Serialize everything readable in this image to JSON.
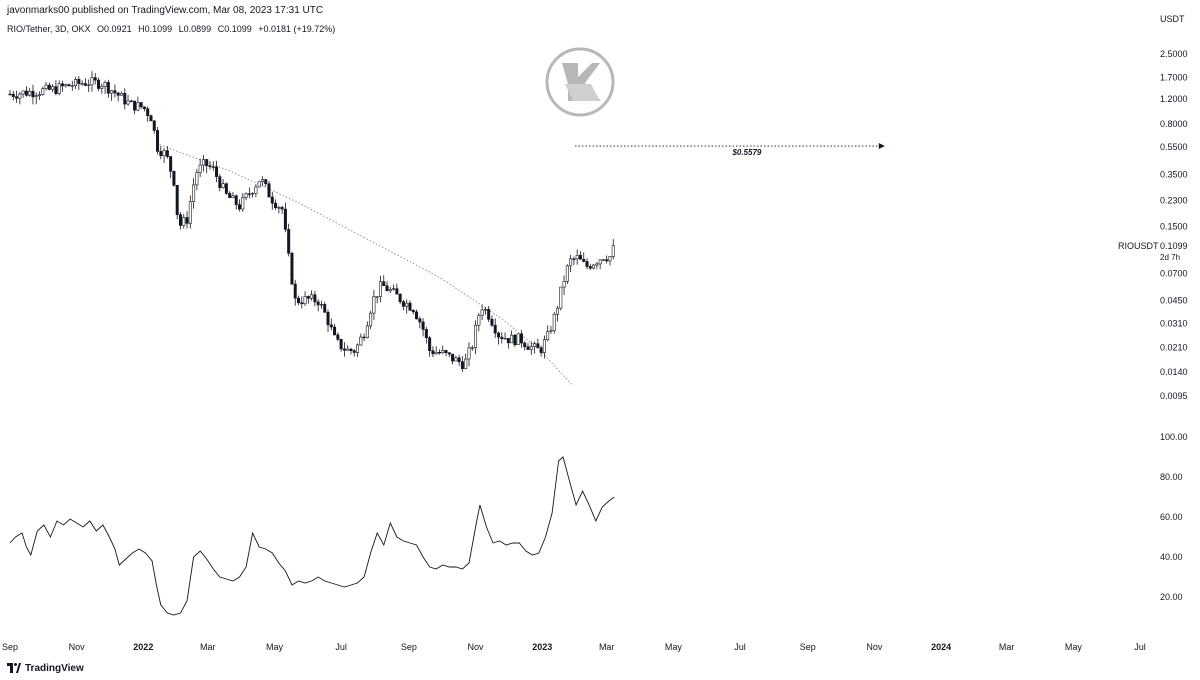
{
  "header": {
    "published": "javonmarks00 published on TradingView.com, Mar 08, 2023 17:31 UTC",
    "symbol_line": "RIO/Tether, 3D, OKX",
    "open": "O0.0921",
    "high": "H0.1099",
    "low": "L0.0899",
    "close": "C0.1099",
    "change": "+0.0181 (+19.72%)"
  },
  "footer": {
    "brand": "TradingView"
  },
  "chart_data": [
    {
      "type": "line",
      "subtype": "candlestick",
      "symbol": "RIOUSDT",
      "current_price_label": "0.1099",
      "countdown_label": "2d 7h",
      "currency_label": "USDT",
      "yscale": "log",
      "ylim": [
        0.0075,
        3.2
      ],
      "y_ticks": [
        "2.5000",
        "1.7000",
        "1.2000",
        "0.8000",
        "0.5500",
        "0.3500",
        "0.2300",
        "0.1500",
        "0.0700",
        "0.0450",
        "0.0310",
        "0.0210",
        "0.0140",
        "0.0095"
      ],
      "target_label": "$0.5579",
      "target_value": 0.5579,
      "target_line": {
        "from": "2023-01-31",
        "to": "2023-11-05"
      },
      "trendline": [
        [
          "2022-01-16",
          0.57
        ],
        [
          "2022-03-22",
          0.37
        ],
        [
          "2022-05-24",
          0.22
        ],
        [
          "2022-07-27",
          0.12
        ],
        [
          "2022-09-30",
          0.065
        ],
        [
          "2022-11-26",
          0.033
        ],
        [
          "2022-12-30",
          0.02
        ],
        [
          "2023-01-28",
          0.0115
        ]
      ],
      "price_path": [
        [
          "2021-09-01",
          1.3
        ],
        [
          "2021-09-20",
          1.35
        ],
        [
          "2021-10-10",
          1.4
        ],
        [
          "2021-10-25",
          1.5
        ],
        [
          "2021-11-10",
          1.58
        ],
        [
          "2021-11-25",
          1.55
        ],
        [
          "2021-12-08",
          1.3
        ],
        [
          "2021-12-20",
          1.1
        ],
        [
          "2022-01-01",
          1.05
        ],
        [
          "2022-01-08",
          0.9
        ],
        [
          "2022-01-14",
          0.55
        ],
        [
          "2022-01-22",
          0.48
        ],
        [
          "2022-01-30",
          0.3
        ],
        [
          "2022-02-02",
          0.15
        ],
        [
          "2022-02-10",
          0.17
        ],
        [
          "2022-02-18",
          0.36
        ],
        [
          "2022-02-26",
          0.42
        ],
        [
          "2022-03-06",
          0.38
        ],
        [
          "2022-03-18",
          0.25
        ],
        [
          "2022-03-30",
          0.21
        ],
        [
          "2022-04-08",
          0.26
        ],
        [
          "2022-04-18",
          0.33
        ],
        [
          "2022-04-28",
          0.24
        ],
        [
          "2022-05-08",
          0.2
        ],
        [
          "2022-05-14",
          0.09
        ],
        [
          "2022-05-20",
          0.045
        ],
        [
          "2022-06-01",
          0.046
        ],
        [
          "2022-06-10",
          0.045
        ],
        [
          "2022-06-18",
          0.034
        ],
        [
          "2022-06-26",
          0.023
        ],
        [
          "2022-07-06",
          0.02
        ],
        [
          "2022-07-14",
          0.02
        ],
        [
          "2022-07-22",
          0.027
        ],
        [
          "2022-07-30",
          0.045
        ],
        [
          "2022-08-07",
          0.058
        ],
        [
          "2022-08-16",
          0.052
        ],
        [
          "2022-08-26",
          0.045
        ],
        [
          "2022-09-05",
          0.04
        ],
        [
          "2022-09-13",
          0.03
        ],
        [
          "2022-09-20",
          0.02
        ],
        [
          "2022-10-02",
          0.019
        ],
        [
          "2022-10-14",
          0.017
        ],
        [
          "2022-10-22",
          0.016
        ],
        [
          "2022-10-29",
          0.022
        ],
        [
          "2022-11-06",
          0.042
        ],
        [
          "2022-11-14",
          0.035
        ],
        [
          "2022-11-22",
          0.026
        ],
        [
          "2022-12-02",
          0.024
        ],
        [
          "2022-12-12",
          0.024
        ],
        [
          "2022-12-22",
          0.021
        ],
        [
          "2022-12-30",
          0.02
        ],
        [
          "2023-01-06",
          0.025
        ],
        [
          "2023-01-13",
          0.036
        ],
        [
          "2023-01-20",
          0.06
        ],
        [
          "2023-01-26",
          0.085
        ],
        [
          "2023-02-02",
          0.09
        ],
        [
          "2023-02-10",
          0.078
        ],
        [
          "2023-02-18",
          0.085
        ],
        [
          "2023-02-26",
          0.093
        ],
        [
          "2023-03-05",
          0.092
        ],
        [
          "2023-03-08",
          0.1099
        ]
      ]
    },
    {
      "type": "line",
      "name": "",
      "ylim": [
        5,
        105
      ],
      "y_ticks": [
        "100.00",
        "80.00",
        "60.00",
        "40.00",
        "20.00"
      ],
      "series": [
        [
          "2021-09-01",
          47
        ],
        [
          "2021-09-06",
          50
        ],
        [
          "2021-09-12",
          52
        ],
        [
          "2021-09-16",
          45
        ],
        [
          "2021-09-20",
          41
        ],
        [
          "2021-09-26",
          53
        ],
        [
          "2021-10-02",
          56
        ],
        [
          "2021-10-08",
          50
        ],
        [
          "2021-10-14",
          58
        ],
        [
          "2021-10-20",
          56
        ],
        [
          "2021-10-26",
          59
        ],
        [
          "2021-11-01",
          57
        ],
        [
          "2021-11-07",
          55
        ],
        [
          "2021-11-13",
          58
        ],
        [
          "2021-11-19",
          53
        ],
        [
          "2021-11-25",
          56
        ],
        [
          "2021-12-01",
          50
        ],
        [
          "2021-12-06",
          44
        ],
        [
          "2021-12-10",
          36
        ],
        [
          "2021-12-16",
          39
        ],
        [
          "2021-12-22",
          42
        ],
        [
          "2021-12-28",
          44
        ],
        [
          "2022-01-03",
          42
        ],
        [
          "2022-01-09",
          38
        ],
        [
          "2022-01-13",
          26
        ],
        [
          "2022-01-17",
          16
        ],
        [
          "2022-01-23",
          12
        ],
        [
          "2022-01-29",
          11
        ],
        [
          "2022-02-04",
          12
        ],
        [
          "2022-02-10",
          18
        ],
        [
          "2022-02-16",
          40
        ],
        [
          "2022-02-22",
          43
        ],
        [
          "2022-02-28",
          39
        ],
        [
          "2022-03-06",
          34
        ],
        [
          "2022-03-12",
          30
        ],
        [
          "2022-03-18",
          29
        ],
        [
          "2022-03-24",
          28
        ],
        [
          "2022-03-30",
          30
        ],
        [
          "2022-04-05",
          35
        ],
        [
          "2022-04-11",
          52
        ],
        [
          "2022-04-17",
          45
        ],
        [
          "2022-04-23",
          44
        ],
        [
          "2022-04-29",
          42
        ],
        [
          "2022-05-05",
          37
        ],
        [
          "2022-05-11",
          33
        ],
        [
          "2022-05-17",
          26
        ],
        [
          "2022-05-23",
          28
        ],
        [
          "2022-05-29",
          27
        ],
        [
          "2022-06-04",
          28
        ],
        [
          "2022-06-10",
          30
        ],
        [
          "2022-06-16",
          28
        ],
        [
          "2022-06-22",
          27
        ],
        [
          "2022-06-28",
          26
        ],
        [
          "2022-07-04",
          25
        ],
        [
          "2022-07-10",
          26
        ],
        [
          "2022-07-16",
          27
        ],
        [
          "2022-07-22",
          30
        ],
        [
          "2022-07-28",
          42
        ],
        [
          "2022-08-03",
          52
        ],
        [
          "2022-08-09",
          46
        ],
        [
          "2022-08-15",
          57
        ],
        [
          "2022-08-21",
          50
        ],
        [
          "2022-08-27",
          48
        ],
        [
          "2022-09-02",
          47
        ],
        [
          "2022-09-08",
          46
        ],
        [
          "2022-09-14",
          40
        ],
        [
          "2022-09-20",
          35
        ],
        [
          "2022-09-26",
          34
        ],
        [
          "2022-10-02",
          36
        ],
        [
          "2022-10-08",
          35
        ],
        [
          "2022-10-14",
          35
        ],
        [
          "2022-10-20",
          34
        ],
        [
          "2022-10-26",
          37
        ],
        [
          "2022-11-01",
          55
        ],
        [
          "2022-11-05",
          66
        ],
        [
          "2022-11-11",
          55
        ],
        [
          "2022-11-17",
          47
        ],
        [
          "2022-11-23",
          48
        ],
        [
          "2022-11-29",
          46
        ],
        [
          "2022-12-05",
          47
        ],
        [
          "2022-12-11",
          47
        ],
        [
          "2022-12-17",
          43
        ],
        [
          "2022-12-23",
          41
        ],
        [
          "2022-12-29",
          42
        ],
        [
          "2023-01-04",
          50
        ],
        [
          "2023-01-10",
          62
        ],
        [
          "2023-01-16",
          88
        ],
        [
          "2023-01-20",
          90
        ],
        [
          "2023-01-26",
          78
        ],
        [
          "2023-02-01",
          66
        ],
        [
          "2023-02-07",
          73
        ],
        [
          "2023-02-13",
          66
        ],
        [
          "2023-02-19",
          58
        ],
        [
          "2023-02-25",
          65
        ],
        [
          "2023-03-03",
          68
        ],
        [
          "2023-03-08",
          70
        ]
      ]
    }
  ],
  "x_axis": {
    "ticks": [
      {
        "label": "Sep",
        "date": "2021-09-01"
      },
      {
        "label": "Nov",
        "date": "2021-11-01"
      },
      {
        "label": "2022",
        "date": "2022-01-01",
        "bold": true
      },
      {
        "label": "Mar",
        "date": "2022-03-01"
      },
      {
        "label": "May",
        "date": "2022-05-01"
      },
      {
        "label": "Jul",
        "date": "2022-07-01"
      },
      {
        "label": "Sep",
        "date": "2022-09-01"
      },
      {
        "label": "Nov",
        "date": "2022-11-01"
      },
      {
        "label": "2023",
        "date": "2023-01-01",
        "bold": true
      },
      {
        "label": "Mar",
        "date": "2023-03-01"
      },
      {
        "label": "May",
        "date": "2023-05-01"
      },
      {
        "label": "Jul",
        "date": "2023-07-01"
      },
      {
        "label": "Sep",
        "date": "2023-09-01"
      },
      {
        "label": "Nov",
        "date": "2023-11-01"
      },
      {
        "label": "2024",
        "date": "2024-01-01",
        "bold": true
      },
      {
        "label": "Mar",
        "date": "2024-03-01"
      },
      {
        "label": "May",
        "date": "2024-05-01"
      },
      {
        "label": "Jul",
        "date": "2024-07-01"
      }
    ]
  },
  "colors": {
    "candle": "#131722",
    "oscillator": "#131722",
    "trendline": "#787b86",
    "axis_text": "#131722",
    "watermark": "#b7b7b7"
  }
}
